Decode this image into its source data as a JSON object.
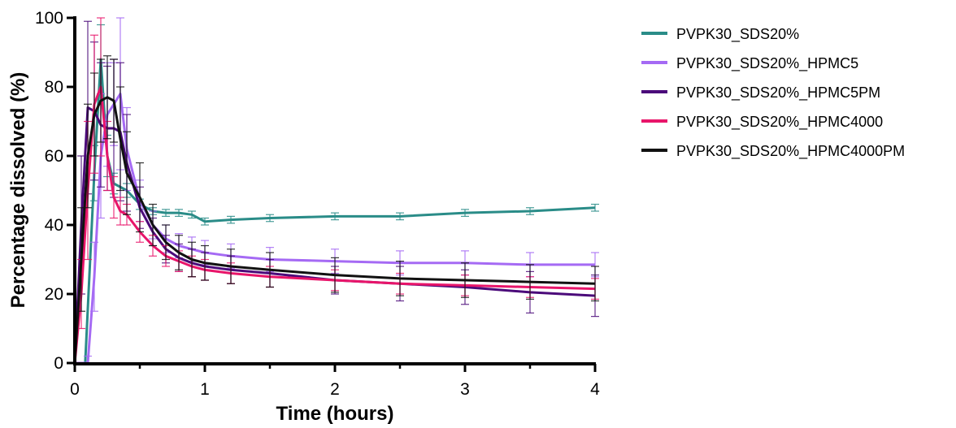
{
  "chart_data": {
    "type": "line",
    "title": "",
    "xlabel": "Time (hours)",
    "ylabel": "Percentage dissolved (%)",
    "xlim": [
      0,
      4
    ],
    "ylim": [
      0,
      100
    ],
    "x_ticks": [
      "0",
      "1",
      "2",
      "3",
      "4"
    ],
    "y_ticks": [
      "0",
      "20",
      "40",
      "60",
      "80",
      "100"
    ],
    "grid": false,
    "legend_position": "top-right",
    "error_bars": true,
    "series": [
      {
        "name": "PVPK30_SDS20%",
        "color": "#2a8c88",
        "x": [
          0,
          0.08,
          0.15,
          0.2,
          0.25,
          0.3,
          0.4,
          0.5,
          0.6,
          0.7,
          0.8,
          0.9,
          1.0,
          1.2,
          1.5,
          2.0,
          2.5,
          3.0,
          3.5,
          4.0
        ],
        "y": [
          0,
          0,
          55,
          88,
          60,
          52,
          50,
          46,
          44,
          43.5,
          43.5,
          43,
          41,
          41.5,
          42,
          42.5,
          42.5,
          43.5,
          44,
          45
        ],
        "err": [
          0,
          0,
          8,
          10,
          6,
          3,
          2,
          1.5,
          1,
          1,
          1,
          1,
          1,
          1,
          1,
          1,
          1,
          1,
          1,
          1
        ]
      },
      {
        "name": "PVPK30_SDS20%_HPMC5",
        "color": "#a56af4",
        "x": [
          0,
          0.1,
          0.15,
          0.2,
          0.25,
          0.3,
          0.35,
          0.4,
          0.5,
          0.6,
          0.7,
          0.8,
          0.9,
          1.0,
          1.2,
          1.5,
          2.0,
          2.5,
          3.0,
          3.5,
          4.0
        ],
        "y": [
          0,
          0,
          25,
          60,
          72,
          75,
          78,
          62,
          47,
          40,
          36,
          34,
          33,
          32,
          31,
          30,
          29.5,
          29,
          29,
          28.5,
          28.5
        ],
        "err": [
          0,
          2,
          10,
          18,
          15,
          12,
          22,
          12,
          6,
          4,
          4,
          3.5,
          3.5,
          3.5,
          3.5,
          3.5,
          3.5,
          3.5,
          3.5,
          3.5,
          3.5
        ]
      },
      {
        "name": "PVPK30_SDS20%_HPMC5PM",
        "color": "#4b0a7a",
        "x": [
          0,
          0.05,
          0.1,
          0.15,
          0.2,
          0.25,
          0.3,
          0.35,
          0.4,
          0.5,
          0.6,
          0.7,
          0.8,
          0.9,
          1.0,
          1.2,
          1.5,
          2.0,
          2.5,
          3.0,
          3.5,
          4.0
        ],
        "y": [
          0,
          40,
          74,
          73,
          69,
          68,
          68,
          67,
          58,
          45,
          38,
          33,
          30.5,
          29,
          28,
          27,
          26,
          24,
          23,
          22,
          20.5,
          19.5
        ],
        "err": [
          0,
          20,
          25,
          20,
          18,
          18,
          20,
          20,
          14,
          6,
          4,
          4,
          4,
          4,
          4,
          4,
          4,
          4,
          5,
          5,
          6,
          6
        ]
      },
      {
        "name": "PVPK30_SDS20%_HPMC4000",
        "color": "#e8156a",
        "x": [
          0,
          0.05,
          0.1,
          0.15,
          0.2,
          0.25,
          0.3,
          0.35,
          0.4,
          0.5,
          0.6,
          0.7,
          0.8,
          0.9,
          1.0,
          1.2,
          1.5,
          2.0,
          2.5,
          3.0,
          3.5,
          4.0
        ],
        "y": [
          0,
          20,
          50,
          75,
          80,
          60,
          48,
          44,
          43,
          38,
          34,
          31,
          29.5,
          28,
          27,
          26,
          25,
          24,
          23,
          22.5,
          22,
          21.5
        ],
        "err": [
          0,
          10,
          20,
          20,
          20,
          10,
          6,
          4,
          3,
          3,
          3,
          3,
          3,
          3,
          3,
          3,
          3,
          3,
          3,
          3,
          3,
          3
        ]
      },
      {
        "name": "PVPK30_SDS20%_HPMC4000PM",
        "color": "#111111",
        "x": [
          0,
          0.05,
          0.1,
          0.15,
          0.2,
          0.25,
          0.3,
          0.35,
          0.4,
          0.5,
          0.6,
          0.7,
          0.8,
          0.9,
          1.0,
          1.2,
          1.5,
          2.0,
          2.5,
          3.0,
          3.5,
          4.0
        ],
        "y": [
          0,
          30,
          60,
          72,
          76,
          77,
          76,
          65,
          55,
          48,
          40,
          35,
          32,
          30,
          29,
          28,
          27,
          25.5,
          24.5,
          24,
          23.5,
          23
        ],
        "err": [
          0,
          15,
          15,
          12,
          12,
          12,
          12,
          15,
          12,
          10,
          6,
          5,
          5,
          5,
          5,
          5,
          5,
          5,
          5,
          5,
          5,
          5
        ]
      }
    ]
  }
}
